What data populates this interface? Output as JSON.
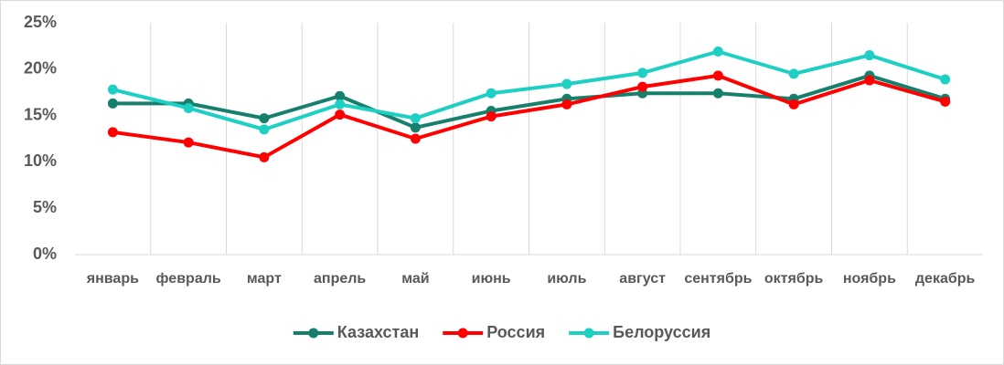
{
  "chart_data": {
    "type": "line",
    "categories": [
      "январь",
      "февраль",
      "март",
      "апрель",
      "май",
      "июнь",
      "июль",
      "август",
      "сентябрь",
      "октябрь",
      "ноябрь",
      "декабрь"
    ],
    "series": [
      {
        "name": "Казахстан",
        "color": "#17806d",
        "values": [
          16.3,
          16.3,
          14.7,
          17.1,
          13.7,
          15.5,
          16.8,
          17.4,
          17.4,
          16.8,
          19.3,
          16.8
        ]
      },
      {
        "name": "Россия",
        "color": "#ff0000",
        "values": [
          13.2,
          12.1,
          10.5,
          15.1,
          12.5,
          14.9,
          16.2,
          18.1,
          19.3,
          16.2,
          18.8,
          16.5
        ]
      },
      {
        "name": "Белоруссия",
        "color": "#1ecfc4",
        "values": [
          17.8,
          15.8,
          13.5,
          16.2,
          14.7,
          17.4,
          18.4,
          19.6,
          21.9,
          19.5,
          21.5,
          18.9
        ]
      }
    ],
    "ylim": [
      0,
      25
    ],
    "yticks": [
      {
        "value": 0,
        "label": "0%"
      },
      {
        "value": 5,
        "label": "5%"
      },
      {
        "value": 10,
        "label": "10%"
      },
      {
        "value": 15,
        "label": "15%"
      },
      {
        "value": 20,
        "label": "20%"
      },
      {
        "value": 25,
        "label": "25%"
      }
    ],
    "vertical_grid": true,
    "legend": "bottom"
  }
}
